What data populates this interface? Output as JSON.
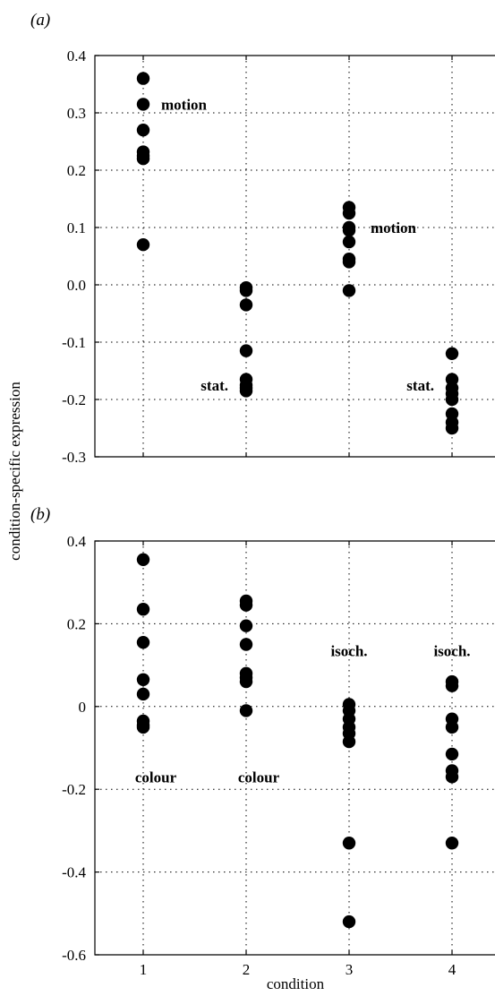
{
  "chart_data": [
    {
      "panel": "(a)",
      "type": "scatter",
      "x_ticks": [
        "1",
        "2",
        "3",
        "4"
      ],
      "y_ticks": [
        "0.4",
        "0.3",
        "0.2",
        "0.1",
        "0.0",
        "-0.1",
        "-0.2",
        "-0.3"
      ],
      "ylim": [
        -0.3,
        0.4
      ],
      "xlim": [
        0.5,
        4.5
      ],
      "grid": true,
      "series": [
        {
          "x": 1,
          "values": [
            0.36,
            0.315,
            0.27,
            0.232,
            0.225,
            0.22,
            0.07
          ]
        },
        {
          "x": 2,
          "values": [
            -0.005,
            -0.01,
            -0.035,
            -0.115,
            -0.165,
            -0.175,
            -0.18,
            -0.185
          ]
        },
        {
          "x": 3,
          "values": [
            0.135,
            0.125,
            0.1,
            0.095,
            0.075,
            0.045,
            0.04,
            -0.01
          ]
        },
        {
          "x": 4,
          "values": [
            -0.12,
            -0.165,
            -0.18,
            -0.19,
            -0.2,
            -0.225,
            -0.24,
            -0.25
          ]
        }
      ],
      "annotations": [
        {
          "text": "motion",
          "x": 1,
          "y": 0.315
        },
        {
          "text": "stat.",
          "x": 2,
          "y": -0.175
        },
        {
          "text": "motion",
          "x": 3,
          "y": 0.1
        },
        {
          "text": "stat.",
          "x": 4,
          "y": -0.175
        }
      ]
    },
    {
      "panel": "(b)",
      "type": "scatter",
      "x_ticks": [
        "1",
        "2",
        "3",
        "4"
      ],
      "y_ticks": [
        "0.4",
        "0.2",
        "0",
        "-0.2",
        "-0.4",
        "-0.6"
      ],
      "ylim": [
        -0.6,
        0.4
      ],
      "xlim": [
        0.5,
        4.5
      ],
      "grid": true,
      "series": [
        {
          "x": 1,
          "values": [
            0.355,
            0.235,
            0.155,
            0.065,
            0.03,
            -0.035,
            -0.045,
            -0.05
          ]
        },
        {
          "x": 2,
          "values": [
            0.255,
            0.245,
            0.195,
            0.15,
            0.08,
            0.07,
            0.06,
            -0.01
          ]
        },
        {
          "x": 3,
          "values": [
            0.005,
            -0.01,
            -0.03,
            -0.05,
            -0.065,
            -0.085,
            -0.33,
            -0.52
          ]
        },
        {
          "x": 4,
          "values": [
            0.06,
            0.05,
            -0.03,
            -0.05,
            -0.115,
            -0.155,
            -0.17,
            -0.33
          ]
        }
      ],
      "annotations": [
        {
          "text": "colour",
          "x": 1,
          "y": -0.17
        },
        {
          "text": "colour",
          "x": 2,
          "y": -0.17
        },
        {
          "text": "isoch.",
          "x": 3,
          "y": 0.135
        },
        {
          "text": "isoch.",
          "x": 4,
          "y": 0.135
        }
      ]
    }
  ],
  "shared": {
    "ylabel": "condition-specific expression",
    "xlabel": "condition"
  }
}
